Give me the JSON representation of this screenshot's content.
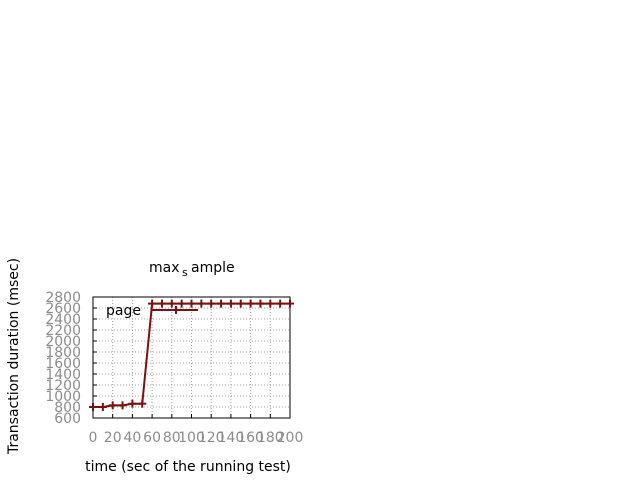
{
  "chart_data": {
    "type": "line",
    "title": "max_sample",
    "title_parts": {
      "main_left": "max",
      "subscript": "s",
      "main_right": "ample"
    },
    "xlabel": "time (sec of the running test)",
    "ylabel": "Transaction duration (msec)",
    "xlim": [
      0,
      200
    ],
    "ylim": [
      600,
      2800
    ],
    "xticks": [
      "0",
      "20",
      "40",
      "60",
      "80",
      "100",
      "120",
      "140",
      "160",
      "180",
      "200"
    ],
    "yticks": [
      "600",
      "800",
      "1000",
      "1200",
      "1400",
      "1600",
      "1800",
      "2000",
      "2200",
      "2400",
      "2600",
      "2800"
    ],
    "grid": true,
    "legend": "top-left",
    "series": [
      {
        "name": "page",
        "color": "#7a1010",
        "x": [
          0,
          10,
          20,
          30,
          40,
          50,
          60,
          70,
          80,
          90,
          100,
          110,
          120,
          130,
          140,
          150,
          160,
          170,
          180,
          190,
          200
        ],
        "y": [
          800,
          800,
          830,
          830,
          860,
          860,
          2680,
          2680,
          2680,
          2680,
          2680,
          2680,
          2680,
          2680,
          2680,
          2680,
          2680,
          2680,
          2680,
          2680,
          2680
        ]
      }
    ]
  }
}
